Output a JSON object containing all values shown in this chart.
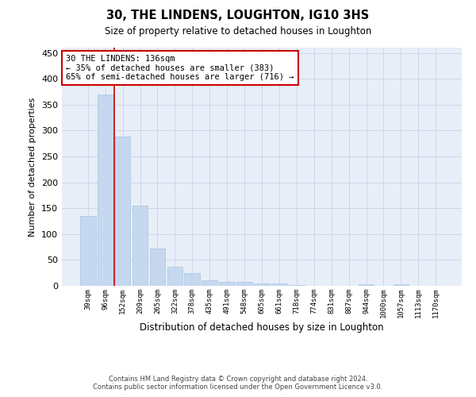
{
  "title": "30, THE LINDENS, LOUGHTON, IG10 3HS",
  "subtitle": "Size of property relative to detached houses in Loughton",
  "xlabel": "Distribution of detached houses by size in Loughton",
  "ylabel": "Number of detached properties",
  "categories": [
    "39sqm",
    "96sqm",
    "152sqm",
    "209sqm",
    "265sqm",
    "322sqm",
    "378sqm",
    "435sqm",
    "491sqm",
    "548sqm",
    "605sqm",
    "661sqm",
    "718sqm",
    "774sqm",
    "831sqm",
    "887sqm",
    "944sqm",
    "1000sqm",
    "1057sqm",
    "1113sqm",
    "1170sqm"
  ],
  "values": [
    135,
    370,
    288,
    155,
    72,
    37,
    25,
    10,
    8,
    7,
    4,
    4,
    2,
    0,
    0,
    0,
    3,
    0,
    3,
    0,
    0
  ],
  "bar_color": "#c5d8f0",
  "bar_edge_color": "#a8c4e0",
  "vline_x": 1.5,
  "vline_color": "#cc0000",
  "ylim": [
    0,
    460
  ],
  "yticks": [
    0,
    50,
    100,
    150,
    200,
    250,
    300,
    350,
    400,
    450
  ],
  "grid_color": "#cdd5e8",
  "background_color": "#e8eef8",
  "annotation_box_text": "30 THE LINDENS: 136sqm\n← 35% of detached houses are smaller (383)\n65% of semi-detached houses are larger (716) →",
  "annotation_box_color": "#cc0000",
  "footer_line1": "Contains HM Land Registry data © Crown copyright and database right 2024.",
  "footer_line2": "Contains public sector information licensed under the Open Government Licence v3.0."
}
